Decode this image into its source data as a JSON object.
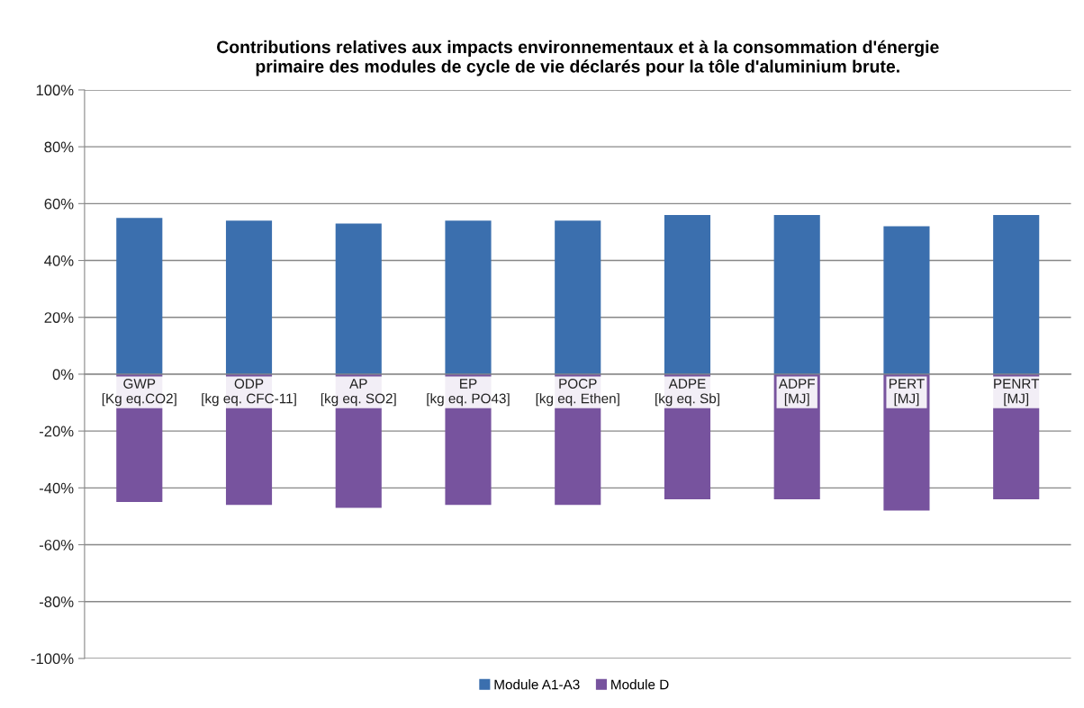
{
  "chart_data": {
    "type": "bar",
    "stacked": true,
    "title": "Contributions relatives aux impacts environnementaux et à la consommation d'énergie\nprimaire des modules de cycle de vie déclarés pour la tôle d'aluminium brute.",
    "categories": [
      "GWP\n[Kg eq.CO2]",
      "ODP\n[kg eq. CFC-11]",
      "AP\n[kg eq. SO2]",
      "EP\n[kg eq. PO43]",
      "POCP\n[kg eq. Ethen]",
      "ADPE\n[kg eq. Sb]",
      "ADPF\n[MJ]",
      "PERT\n[MJ]",
      "PENRT\n[MJ]"
    ],
    "series": [
      {
        "name": "Module A1-A3",
        "color": "#3b6fae",
        "values": [
          55,
          54,
          53,
          54,
          54,
          56,
          56,
          52,
          56
        ]
      },
      {
        "name": "Module D",
        "color": "#77539e",
        "values": [
          -45,
          -46,
          -47,
          -46,
          -46,
          -44,
          -44,
          -48,
          -44
        ]
      }
    ],
    "ylim": [
      -100,
      100
    ],
    "yticks": [
      {
        "value": -100,
        "label": "-100%"
      },
      {
        "value": -80,
        "label": "-80%"
      },
      {
        "value": -60,
        "label": "-60%"
      },
      {
        "value": -40,
        "label": "-40%"
      },
      {
        "value": -20,
        "label": "-20%"
      },
      {
        "value": 0,
        "label": "0%"
      },
      {
        "value": 20,
        "label": "20%"
      },
      {
        "value": 40,
        "label": "40%"
      },
      {
        "value": 60,
        "label": "60%"
      },
      {
        "value": 80,
        "label": "80%"
      },
      {
        "value": 100,
        "label": "100%"
      }
    ],
    "grid": "y",
    "legend": "bottom"
  }
}
